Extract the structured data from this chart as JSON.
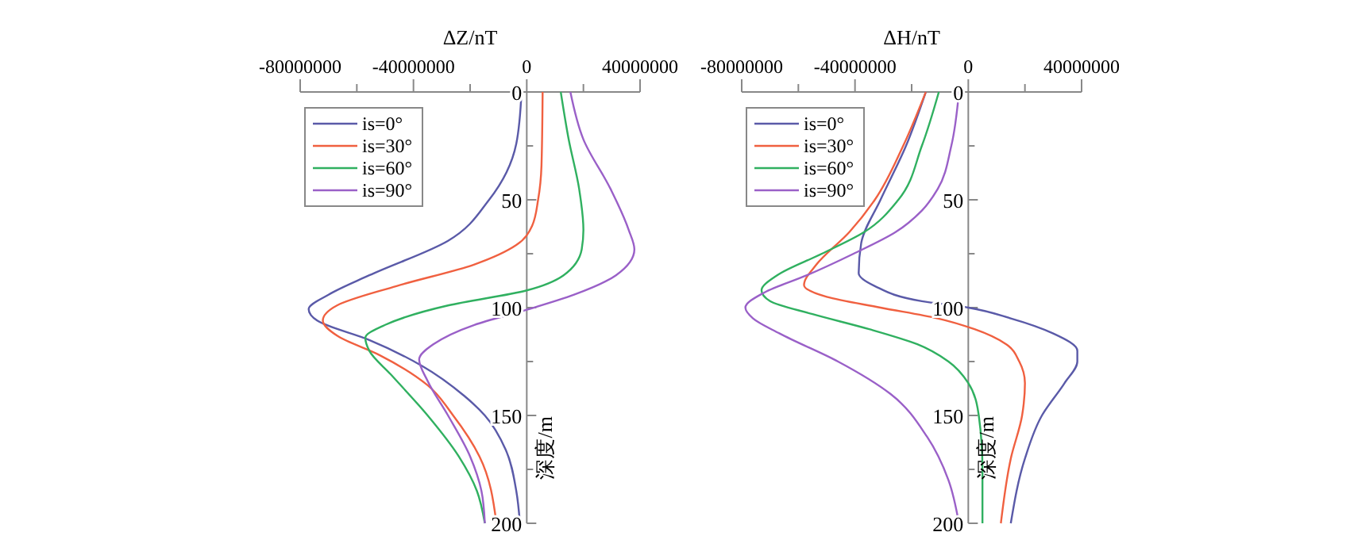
{
  "chart_data": [
    {
      "type": "line",
      "xlabel": "ΔZ/nT",
      "ylabel": "深度/m",
      "xlim": [
        -80000000,
        40000000
      ],
      "xticks": [
        -80000000,
        {
          "value": -60000000,
          "label": null
        },
        -40000000,
        {
          "value": -20000000,
          "label": null
        },
        0,
        {
          "value": 20000000,
          "label": null
        },
        40000000
      ],
      "ylim": [
        200,
        0
      ],
      "yticks": [
        0,
        {
          "value": 25,
          "label": null
        },
        50,
        {
          "value": 75,
          "label": null
        },
        100,
        {
          "value": 125,
          "label": null
        },
        150,
        {
          "value": 175,
          "label": null
        },
        200
      ],
      "legend": "top left",
      "grid": false,
      "line_style": "solid",
      "series": [
        {
          "name": "is=0°",
          "color": "#5a5aa8",
          "x": [
            -1850000,
            -3700000,
            -13300000,
            -27800000,
            -55600000,
            -70000000,
            -77000000,
            -74000000,
            -55600000,
            -37000000,
            -22000000,
            -14800000,
            -7400000,
            -3700000,
            -2400000
          ],
          "values": [
            0,
            24,
            50,
            69,
            85,
            94,
            100.7,
            106,
            115,
            127,
            141,
            150,
            166,
            185,
            200
          ]
        },
        {
          "name": "is=30°",
          "color": "#f06040",
          "x": [
            5600000,
            5200000,
            4000000,
            1900000,
            -3700000,
            -18500000,
            -46000000,
            -67000000,
            -72000000,
            -67000000,
            -52000000,
            -35000000,
            -26000000,
            -16700000,
            -10700000
          ],
          "values": [
            0,
            34,
            50,
            62,
            71,
            80,
            90,
            99,
            106,
            113,
            122,
            136,
            150,
            169,
            200
          ]
        },
        {
          "name": "is=60°",
          "color": "#30b060",
          "x": [
            12000000,
            14800000,
            18500000,
            20000000,
            19400000,
            13000000,
            0,
            -27800000,
            -50000000,
            -57000000,
            -55600000,
            -48000000,
            -35000000,
            -24000000,
            -17600000,
            -14800000
          ],
          "values": [
            0,
            22,
            45,
            64,
            73,
            85,
            92,
            99,
            108,
            114,
            120,
            131,
            150,
            169,
            185,
            200
          ]
        },
        {
          "name": "is=90°",
          "color": "#9a60c8",
          "x": [
            15400000,
            20000000,
            29600000,
            36000000,
            38000000,
            31500000,
            16700000,
            0,
            -18500000,
            -33000000,
            -38000000,
            -35000000,
            -27800000,
            -20000000,
            -16000000,
            -14800000
          ],
          "values": [
            0,
            22,
            45,
            64,
            73,
            85,
            94,
            101,
            108,
            117,
            124,
            134,
            150,
            169,
            185,
            200
          ]
        }
      ]
    },
    {
      "type": "line",
      "xlabel": "ΔH/nT",
      "ylabel": "深度/m",
      "xlim": [
        -80000000,
        40000000
      ],
      "xticks": [
        -80000000,
        {
          "value": -60000000,
          "label": null
        },
        -40000000,
        {
          "value": -20000000,
          "label": null
        },
        0,
        {
          "value": 20000000,
          "label": null
        },
        40000000
      ],
      "ylim": [
        200,
        0
      ],
      "yticks": [
        0,
        {
          "value": 25,
          "label": null
        },
        50,
        {
          "value": 75,
          "label": null
        },
        100,
        {
          "value": 125,
          "label": null
        },
        150,
        {
          "value": 175,
          "label": null
        },
        200
      ],
      "legend": "top left",
      "grid": false,
      "line_style": "solid",
      "series": [
        {
          "name": "is=0°",
          "color": "#5a5aa8",
          "x": [
            -15000000,
            -22000000,
            -31000000,
            -37800000,
            -38700000,
            -33000000,
            -16400000,
            0,
            15000000,
            30000000,
            38500000,
            38500000,
            34000000,
            26000000,
            20000000,
            15000000
          ],
          "values": [
            0,
            25,
            50,
            70,
            84,
            90,
            97,
            100,
            105,
            112,
            120,
            125,
            135,
            150,
            170,
            200
          ]
        },
        {
          "name": "is=30°",
          "color": "#f06040",
          "x": [
            -15000000,
            -23000000,
            -33000000,
            -42000000,
            -53600000,
            -58000000,
            -50000000,
            -31000000,
            -10800000,
            2200000,
            13400000,
            18000000,
            20000000,
            19000000,
            15000000,
            11500000
          ],
          "values": [
            0,
            25,
            50,
            65,
            80,
            89.5,
            95,
            100,
            105,
            110,
            117,
            125,
            135,
            150,
            170,
            200
          ]
        },
        {
          "name": "is=60°",
          "color": "#30b060",
          "x": [
            -10400000,
            -16400000,
            -24700000,
            -36800000,
            -51700000,
            -67500000,
            -73000000,
            -70000000,
            -55000000,
            -35000000,
            -18000000,
            -7000000,
            0,
            3700000,
            5000000,
            5000000
          ],
          "values": [
            0,
            25,
            50,
            65,
            75,
            85,
            92,
            97,
            103,
            110,
            117,
            125,
            135,
            150,
            175,
            200
          ]
        },
        {
          "name": "is=90°",
          "color": "#9a60c8",
          "x": [
            -3300000,
            -6000000,
            -10800000,
            -16400000,
            -25700000,
            -40500000,
            -57000000,
            -72000000,
            -78700000,
            -76000000,
            -66600000,
            -46000000,
            -27500000,
            -14500000,
            -7000000,
            -3300000
          ],
          "values": [
            0,
            25,
            45,
            55,
            65,
            75,
            85,
            93,
            100,
            105,
            112,
            125,
            140,
            160,
            180,
            200
          ]
        }
      ]
    }
  ]
}
